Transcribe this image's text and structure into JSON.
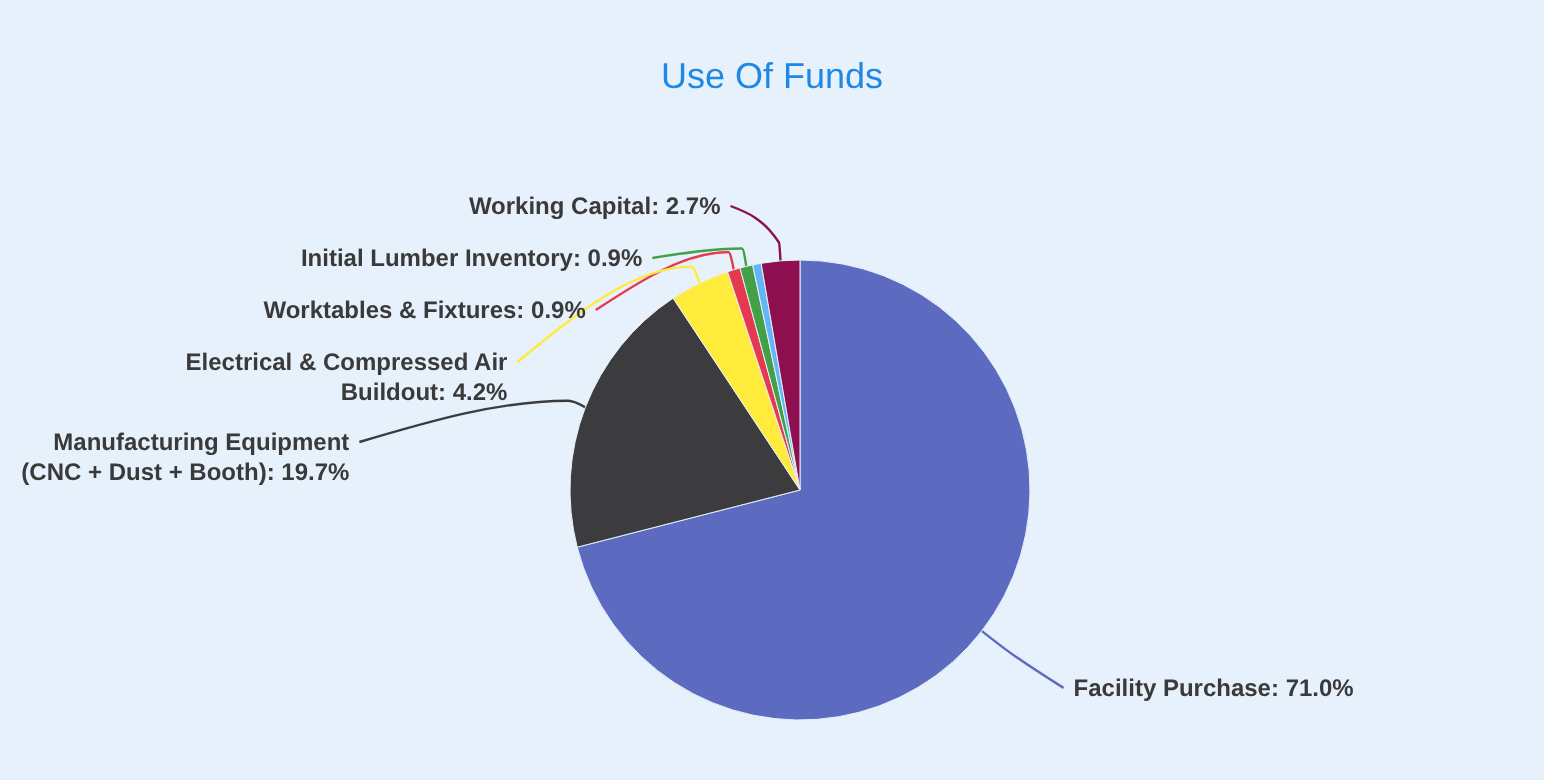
{
  "chart_data": {
    "type": "pie",
    "title": "Use Of Funds",
    "categories": [
      "Facility Purchase: 71.0%",
      "Manufacturing Equipment (CNC + Dust + Booth): 19.7%",
      "Electrical & Compressed Air Buildout: 4.2%",
      "Worktables & Fixtures: 0.9%",
      "Initial Lumber Inventory: 0.9%",
      null,
      "Working Capital: 2.7%"
    ],
    "values": [
      71.0,
      19.7,
      4.2,
      0.9,
      0.9,
      0.6,
      2.7
    ],
    "colors": [
      "#5c6bc0",
      "#3c3c3f",
      "#ffeb3b",
      "#e53950",
      "#43a047",
      "#64b5f6",
      "#8e0f4f"
    ]
  }
}
